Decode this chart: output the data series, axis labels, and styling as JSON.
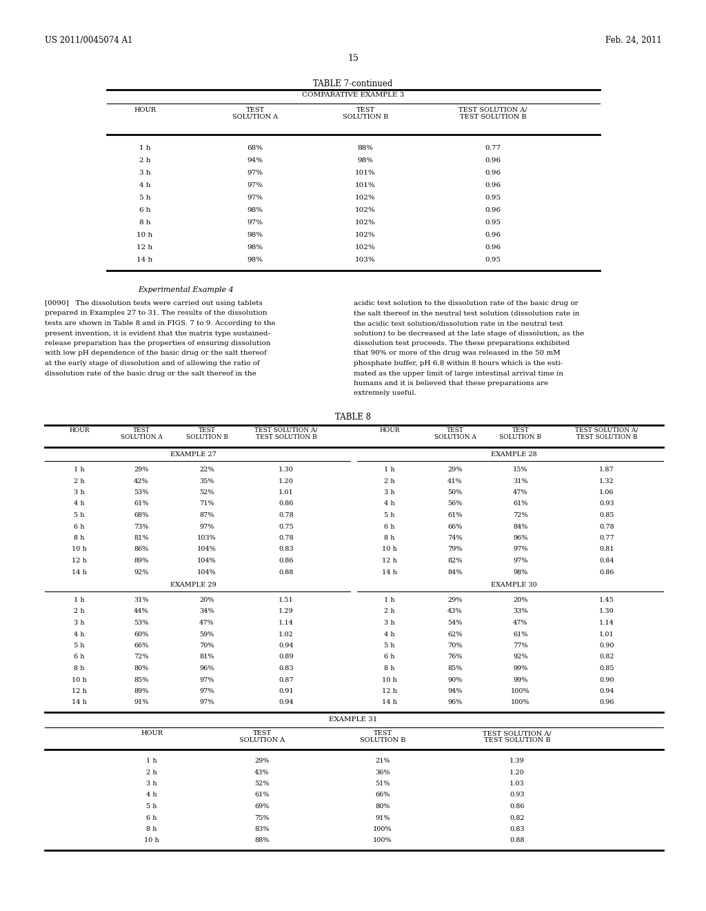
{
  "header_left": "US 2011/0045074 A1",
  "header_right": "Feb. 24, 2011",
  "page_number": "15",
  "bg_color": "#ffffff",
  "table7_title": "TABLE 7-continued",
  "table7_subtitle": "COMPARATIVE EXAMPLE 3",
  "table7_rows": [
    [
      "1 h",
      "68%",
      "88%",
      "0.77"
    ],
    [
      "2 h",
      "94%",
      "98%",
      "0.96"
    ],
    [
      "3 h",
      "97%",
      "101%",
      "0.96"
    ],
    [
      "4 h",
      "97%",
      "101%",
      "0.96"
    ],
    [
      "5 h",
      "97%",
      "102%",
      "0.95"
    ],
    [
      "6 h",
      "98%",
      "102%",
      "0.96"
    ],
    [
      "8 h",
      "97%",
      "102%",
      "0.95"
    ],
    [
      "10 h",
      "98%",
      "102%",
      "0.96"
    ],
    [
      "12 h",
      "98%",
      "102%",
      "0.96"
    ],
    [
      "14 h",
      "98%",
      "103%",
      "0.95"
    ]
  ],
  "exp_heading": "Experimental Example 4",
  "exp_para_left": "[0090]   The dissolution tests were carried out using tablets\nprepared in Examples 27 to 31. The results of the dissolution\ntests are shown in Table 8 and in FIGS. 7 to 9. According to the\npresent invention, it is evident that the matrix type sustained-\nrelease preparation has the properties of ensuring dissolution\nwith low pH dependence of the basic drug or the salt thereof\nat the early stage of dissolution and of allowing the ratio of\ndissolution rate of the basic drug or the salt thereof in the",
  "exp_para_right": "acidic test solution to the dissolution rate of the basic drug or\nthe salt thereof in the neutral test solution (dissolution rate in\nthe acidic test solution/dissolution rate in the neutral test\nsolution) to be decreased at the late stage of dissolution, as the\ndissolution test proceeds. The these preparations exhibited\nthat 90% or more of the drug was released in the 50 mM\nphosphate buffer, pH 6.8 within 8 hours which is the esti-\nmated as the upper limit of large intestinal arrival time in\nhumans and it is believed that these preparations are\nextremely useful.",
  "table8_title": "TABLE 8",
  "example27_rows": [
    [
      "1 h",
      "29%",
      "22%",
      "1.30"
    ],
    [
      "2 h",
      "42%",
      "35%",
      "1.20"
    ],
    [
      "3 h",
      "53%",
      "52%",
      "1.01"
    ],
    [
      "4 h",
      "61%",
      "71%",
      "0.86"
    ],
    [
      "5 h",
      "68%",
      "87%",
      "0.78"
    ],
    [
      "6 h",
      "73%",
      "97%",
      "0.75"
    ],
    [
      "8 h",
      "81%",
      "103%",
      "0.78"
    ],
    [
      "10 h",
      "86%",
      "104%",
      "0.83"
    ],
    [
      "12 h",
      "89%",
      "104%",
      "0.86"
    ],
    [
      "14 h",
      "92%",
      "104%",
      "0.88"
    ]
  ],
  "example28_rows": [
    [
      "1 h",
      "29%",
      "15%",
      "1.87"
    ],
    [
      "2 h",
      "41%",
      "31%",
      "1.32"
    ],
    [
      "3 h",
      "50%",
      "47%",
      "1.06"
    ],
    [
      "4 h",
      "56%",
      "61%",
      "0.93"
    ],
    [
      "5 h",
      "61%",
      "72%",
      "0.85"
    ],
    [
      "6 h",
      "66%",
      "84%",
      "0.78"
    ],
    [
      "8 h",
      "74%",
      "96%",
      "0.77"
    ],
    [
      "10 h",
      "79%",
      "97%",
      "0.81"
    ],
    [
      "12 h",
      "82%",
      "97%",
      "0.84"
    ],
    [
      "14 h",
      "84%",
      "98%",
      "0.86"
    ]
  ],
  "example29_rows": [
    [
      "1 h",
      "31%",
      "20%",
      "1.51"
    ],
    [
      "2 h",
      "44%",
      "34%",
      "1.29"
    ],
    [
      "3 h",
      "53%",
      "47%",
      "1.14"
    ],
    [
      "4 h",
      "60%",
      "59%",
      "1.02"
    ],
    [
      "5 h",
      "66%",
      "70%",
      "0.94"
    ],
    [
      "6 h",
      "72%",
      "81%",
      "0.89"
    ],
    [
      "8 h",
      "80%",
      "96%",
      "0.83"
    ],
    [
      "10 h",
      "85%",
      "97%",
      "0.87"
    ],
    [
      "12 h",
      "89%",
      "97%",
      "0.91"
    ],
    [
      "14 h",
      "91%",
      "97%",
      "0.94"
    ]
  ],
  "example30_rows": [
    [
      "1 h",
      "29%",
      "20%",
      "1.45"
    ],
    [
      "2 h",
      "43%",
      "33%",
      "1.30"
    ],
    [
      "3 h",
      "54%",
      "47%",
      "1.14"
    ],
    [
      "4 h",
      "62%",
      "61%",
      "1.01"
    ],
    [
      "5 h",
      "70%",
      "77%",
      "0.90"
    ],
    [
      "6 h",
      "76%",
      "92%",
      "0.82"
    ],
    [
      "8 h",
      "85%",
      "99%",
      "0.85"
    ],
    [
      "10 h",
      "90%",
      "99%",
      "0.90"
    ],
    [
      "12 h",
      "94%",
      "100%",
      "0.94"
    ],
    [
      "14 h",
      "96%",
      "100%",
      "0.96"
    ]
  ],
  "example31_rows": [
    [
      "1 h",
      "29%",
      "21%",
      "1.39"
    ],
    [
      "2 h",
      "43%",
      "36%",
      "1.20"
    ],
    [
      "3 h",
      "52%",
      "51%",
      "1.03"
    ],
    [
      "4 h",
      "61%",
      "66%",
      "0.93"
    ],
    [
      "5 h",
      "69%",
      "80%",
      "0.86"
    ],
    [
      "6 h",
      "75%",
      "91%",
      "0.82"
    ],
    [
      "8 h",
      "83%",
      "100%",
      "0.83"
    ],
    [
      "10 h",
      "88%",
      "100%",
      "0.88"
    ]
  ]
}
